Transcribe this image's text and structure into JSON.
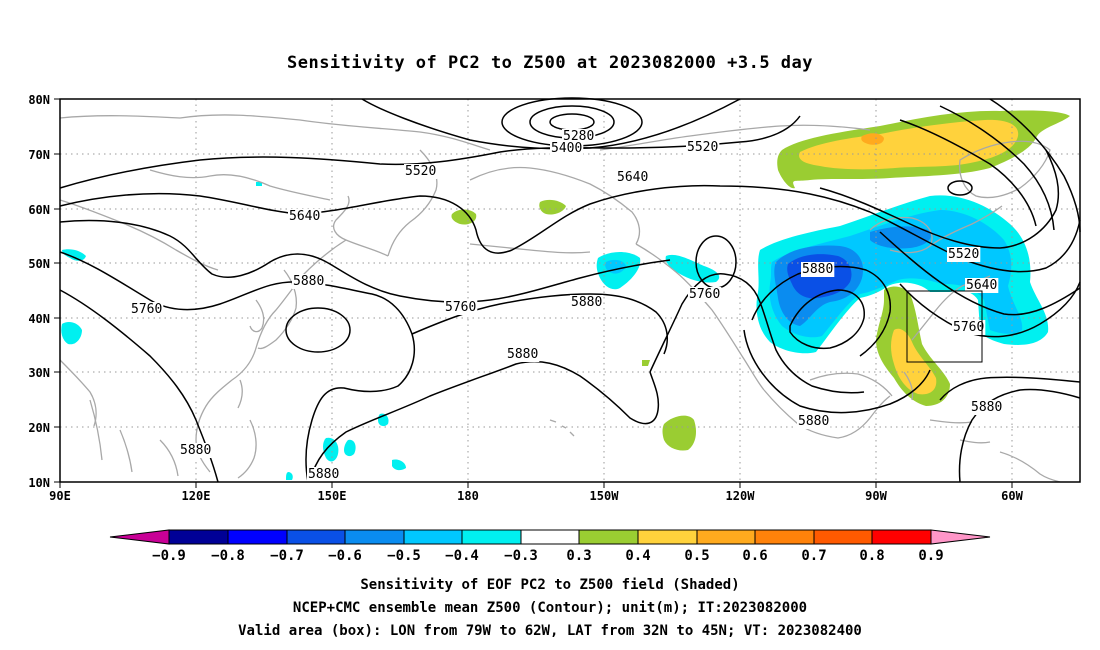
{
  "map": {
    "title": "Sensitivity of PC2 to Z500 at 2023082000 +3.5 day",
    "lat_labels": [
      "80N",
      "70N",
      "60N",
      "50N",
      "40N",
      "30N",
      "20N",
      "10N"
    ],
    "lon_labels": [
      "90E",
      "120E",
      "150E",
      "180",
      "150W",
      "120W",
      "90W",
      "60W"
    ],
    "extent": {
      "lon_min": 90,
      "lon_max": 315,
      "lat_min": 10,
      "lat_max": 80
    },
    "contour_labels": [
      "5280",
      "5400",
      "5520",
      "5520",
      "5640",
      "5640",
      "5760",
      "5760",
      "5880",
      "5880",
      "5880",
      "5760",
      "5880",
      "5880",
      "5520",
      "5640",
      "5760",
      "5880",
      "5880"
    ],
    "valid_box": {
      "lon_west": 281,
      "lon_east": 298,
      "lat_south": 32,
      "lat_north": 45
    },
    "colors": {
      "neg_09": "#c80096",
      "neg_08": "#000096",
      "neg_07": "#0000ff",
      "neg_06": "#0a50e6",
      "neg_05": "#0a8cf0",
      "neg_04": "#00c8ff",
      "neg_03": "#00f0f0",
      "pos_03": "#9acd32",
      "pos_04": "#ffd23c",
      "pos_05": "#ffaa1e",
      "pos_06": "#ff820a",
      "pos_07": "#ff5a00",
      "pos_08": "#ff2d00",
      "pos_09": "#ff0000",
      "pos_over": "#ff96c8"
    }
  },
  "colorbar": {
    "labels": [
      "−0.9",
      "−0.8",
      "−0.7",
      "−0.6",
      "−0.5",
      "−0.4",
      "−0.3",
      "0.3",
      "0.4",
      "0.5",
      "0.6",
      "0.7",
      "0.8",
      "0.9"
    ]
  },
  "caption": {
    "line1": "Sensitivity of EOF PC2 to Z500 field (Shaded)",
    "line2": "NCEP+CMC ensemble mean Z500 (Contour); unit(m); IT:2023082000",
    "line3": "Valid area (box): LON from 79W to 62W, LAT from 32N to 45N; VT: 2023082400"
  }
}
